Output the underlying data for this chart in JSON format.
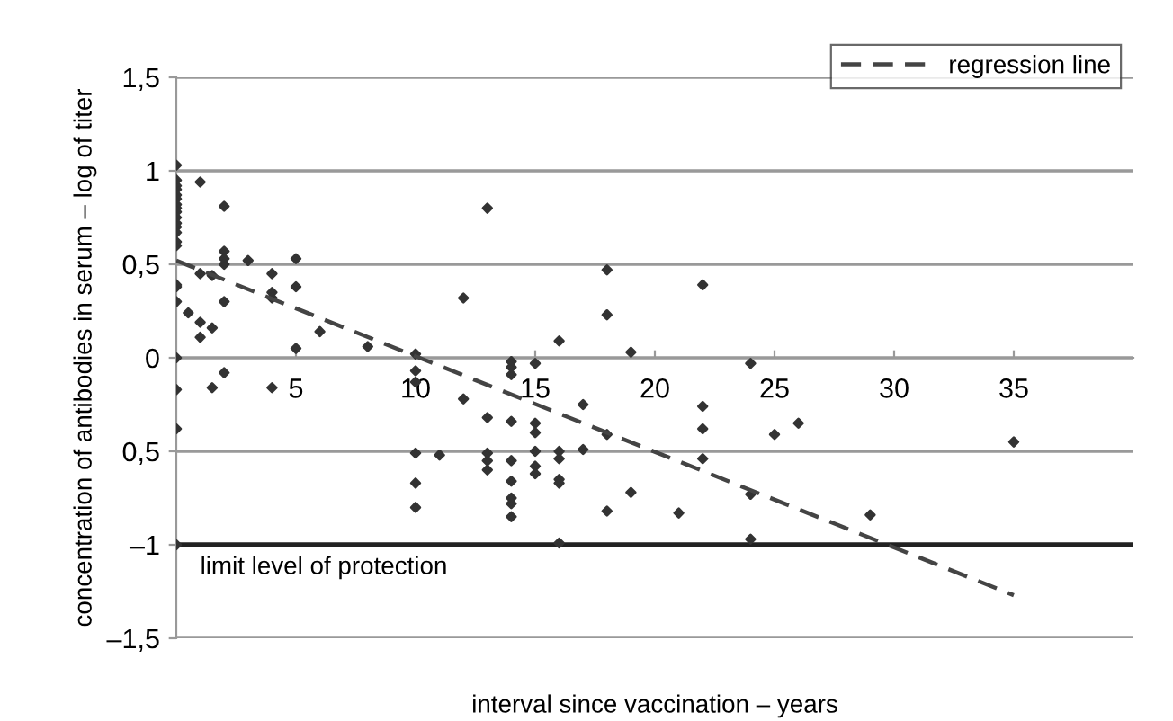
{
  "chart_data": {
    "type": "scatter",
    "xlabel": "interval since vaccination – years",
    "ylabel": "concentration of antibodies in serum – log of titer",
    "xlim": [
      0,
      40
    ],
    "xticks": [
      5,
      10,
      15,
      20,
      25,
      30,
      35
    ],
    "ylim": [
      -1.5,
      1.5
    ],
    "yticks": [
      {
        "value": 1.5,
        "label": "1,5"
      },
      1,
      {
        "value": 0.5,
        "label": "0,5"
      },
      0,
      {
        "value": -0.5,
        "label": "0,5"
      },
      {
        "value": -1,
        "label": "–1"
      },
      {
        "value": -1.5,
        "label": "–1,5"
      }
    ],
    "grid": "y",
    "legend": "top right",
    "marker": "diamond",
    "series": [
      {
        "color": "#333333",
        "x": [
          0,
          0,
          0,
          0,
          0,
          0,
          0,
          0,
          0,
          0,
          0,
          0,
          0,
          0,
          0,
          0,
          0,
          0,
          0,
          0,
          0,
          0,
          0.5,
          1,
          1,
          1.5,
          1,
          1,
          1.5,
          1.5,
          2,
          2,
          2,
          2,
          2,
          2,
          3,
          4,
          4,
          4,
          4,
          5,
          5,
          5,
          6,
          8,
          10,
          10,
          10,
          10,
          10,
          10,
          11,
          12,
          12,
          13,
          13,
          13,
          13,
          13,
          14,
          14,
          14,
          14,
          14,
          14,
          14,
          14,
          14,
          15,
          15,
          15,
          15,
          15,
          15,
          16,
          16,
          16,
          16,
          16,
          16,
          17,
          17,
          18,
          18,
          18,
          18,
          19,
          19,
          21,
          22,
          22,
          22,
          22,
          24,
          24,
          24,
          25,
          26,
          29,
          35
        ],
        "values": [
          1.03,
          0.95,
          0.9,
          0.87,
          0.85,
          0.82,
          0.8,
          0.78,
          0.75,
          0.7,
          0.67,
          0.62,
          0.6,
          0.92,
          0.72,
          0.39,
          0.38,
          0.3,
          0,
          -0.17,
          -0.38,
          -1,
          0.24,
          0.19,
          0.11,
          0.16,
          0.94,
          0.45,
          0.44,
          -0.16,
          0.81,
          0.57,
          0.53,
          0.5,
          0.3,
          -0.08,
          0.52,
          0.45,
          0.35,
          0.32,
          -0.16,
          0.53,
          0.38,
          0.05,
          0.14,
          0.06,
          0.02,
          -0.07,
          -0.13,
          -0.51,
          -0.67,
          -0.8,
          -0.52,
          0.32,
          -0.22,
          0.8,
          -0.32,
          -0.51,
          -0.55,
          -0.6,
          -0.02,
          -0.05,
          -0.09,
          -0.34,
          -0.55,
          -0.66,
          -0.75,
          -0.78,
          -0.85,
          -0.03,
          -0.35,
          -0.4,
          -0.5,
          -0.58,
          -0.62,
          0.09,
          -0.5,
          -0.54,
          -0.65,
          -0.67,
          -0.99,
          -0.25,
          -0.49,
          0.47,
          0.23,
          -0.41,
          -0.82,
          0.03,
          -0.72,
          -0.83,
          0.39,
          -0.26,
          -0.38,
          -0.54,
          -0.03,
          -0.73,
          -0.97,
          -0.41,
          -0.35,
          -0.84,
          -0.45
        ]
      },
      {
        "type": "line",
        "name": "regression line",
        "color": "#444444",
        "line_style": "dashed",
        "marker": "none",
        "x": [
          0,
          35
        ],
        "values": [
          0.52,
          -1.27
        ]
      }
    ],
    "ref_lines": [
      {
        "axis": "y",
        "value": -1,
        "label": "limit level of protection",
        "color": "#222222"
      }
    ]
  }
}
